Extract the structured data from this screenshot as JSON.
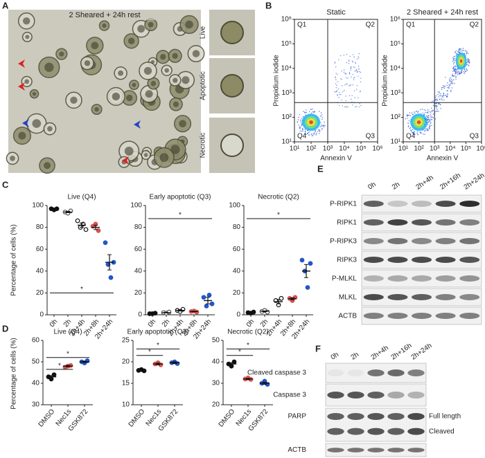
{
  "panels": {
    "A": {
      "letter": "A",
      "title": "2 Sheared + 24h rest",
      "insets": [
        "Live",
        "Apoptotic",
        "Necrotic"
      ]
    },
    "B": {
      "letter": "B",
      "xlabel": "Annexin V",
      "ylabel": "Propidium iodide",
      "log": true,
      "lim": [
        10,
        1000000
      ],
      "ticks": [
        {
          "value": 10,
          "label": "10¹"
        },
        {
          "value": 100,
          "label": "10²"
        },
        {
          "value": 1000,
          "label": "10³"
        },
        {
          "value": 10000,
          "label": "10⁴"
        },
        {
          "value": 100000,
          "label": "10⁵"
        },
        {
          "value": 1000000,
          "label": "10⁶"
        }
      ],
      "gate": [
        1000,
        400
      ],
      "quadrants": [
        "Q1",
        "Q2",
        "Q3",
        "Q4"
      ],
      "plots": [
        {
          "title": "Static"
        },
        {
          "title": "2 Sheared + 24h rest"
        }
      ]
    },
    "C": {
      "letter": "C",
      "ylabel": "Percentage of cells (%)",
      "categories": [
        "0h",
        "2h",
        "2h+4h",
        "2h+8h",
        "2h+24h"
      ],
      "colors": [
        "#111111",
        "#555555",
        "#111111",
        "#d9534f",
        "#2356c7"
      ],
      "filled": [
        true,
        false,
        false,
        true,
        true
      ],
      "ylim": [
        0,
        100
      ],
      "yticks": [
        0,
        20,
        40,
        60,
        80,
        100
      ],
      "plots": [
        {
          "title": "Live (Q4)",
          "groups": [
            {
              "values": [
                97,
                96,
                97
              ],
              "mean": 96.7,
              "sem": 0.5
            },
            {
              "values": [
                94,
                93,
                95
              ],
              "mean": 94,
              "sem": 0.6
            },
            {
              "values": [
                86,
                80,
                83,
                78
              ],
              "mean": 82,
              "sem": 2
            },
            {
              "values": [
                81,
                83,
                77
              ],
              "mean": 80,
              "sem": 2
            },
            {
              "values": [
                66,
                46,
                34,
                48
              ],
              "mean": 48,
              "sem": 7
            }
          ],
          "significance": [
            {
              "from": 0,
              "to": 4,
              "y": 20,
              "label": "*"
            }
          ]
        },
        {
          "title": "Early apoptotic (Q3)",
          "groups": [
            {
              "values": [
                1,
                1,
                1.5
              ],
              "mean": 1.2,
              "sem": 0.2
            },
            {
              "values": [
                2,
                1.5,
                2.5
              ],
              "mean": 2,
              "sem": 0.3
            },
            {
              "values": [
                4,
                3,
                5
              ],
              "mean": 4,
              "sem": 0.6
            },
            {
              "values": [
                3,
                3.5,
                2.5
              ],
              "mean": 3,
              "sem": 0.3
            },
            {
              "values": [
                16,
                8,
                18,
                10
              ],
              "mean": 13,
              "sem": 3
            }
          ],
          "significance": [
            {
              "from": 0,
              "to": 4,
              "y": 88,
              "label": "*"
            }
          ]
        },
        {
          "title": "Necrotic (Q2)",
          "groups": [
            {
              "values": [
                2,
                1.5,
                2.5
              ],
              "mean": 2,
              "sem": 0.3
            },
            {
              "values": [
                3,
                4,
                2.5
              ],
              "mean": 3.2,
              "sem": 0.4
            },
            {
              "values": [
                13,
                9,
                15
              ],
              "mean": 12,
              "sem": 2
            },
            {
              "values": [
                15,
                13,
                16
              ],
              "mean": 14.7,
              "sem": 1
            },
            {
              "values": [
                50,
                40,
                25,
                47
              ],
              "mean": 40,
              "sem": 6
            }
          ],
          "significance": [
            {
              "from": 0,
              "to": 4,
              "y": 88,
              "label": "*"
            }
          ]
        }
      ]
    },
    "D": {
      "letter": "D",
      "ylabel": "Percentage of cells (%)",
      "categories": [
        "DMSO",
        "Nec1s",
        "GSK872"
      ],
      "colors": [
        "#111111",
        "#d9534f",
        "#2356c7"
      ],
      "plots": [
        {
          "title": "Live (Q4)",
          "ylim": [
            30,
            60
          ],
          "yticks": [
            30,
            40,
            50,
            60
          ],
          "groups": [
            {
              "values": [
                43,
                42,
                44
              ],
              "mean": 43,
              "sem": 0.6
            },
            {
              "values": [
                47.5,
                48,
                48.3
              ],
              "mean": 48,
              "sem": 0.3
            },
            {
              "values": [
                50,
                49.5,
                50.5
              ],
              "mean": 50,
              "sem": 0.3
            }
          ],
          "significance": [
            {
              "from": 0,
              "to": 1,
              "y": 46.5,
              "label": "*"
            },
            {
              "from": 0,
              "to": 2,
              "y": 52,
              "label": "*"
            }
          ]
        },
        {
          "title": "Early apoptotic (Q3)",
          "ylim": [
            10,
            25
          ],
          "yticks": [
            10,
            15,
            20,
            25
          ],
          "groups": [
            {
              "values": [
                18,
                18.2,
                17.9
              ],
              "mean": 18,
              "sem": 0.1
            },
            {
              "values": [
                19.5,
                19.8,
                19.3
              ],
              "mean": 19.5,
              "sem": 0.2
            },
            {
              "values": [
                19.8,
                20,
                19.6
              ],
              "mean": 19.8,
              "sem": 0.2
            }
          ],
          "significance": [
            {
              "from": 0,
              "to": 1,
              "y": 21.5,
              "label": "*"
            },
            {
              "from": 0,
              "to": 2,
              "y": 23,
              "label": "*"
            }
          ]
        },
        {
          "title": "Necrotic (Q2)",
          "ylim": [
            20,
            50
          ],
          "yticks": [
            20,
            30,
            40,
            50
          ],
          "groups": [
            {
              "values": [
                39,
                38,
                40
              ],
              "mean": 39,
              "sem": 0.6
            },
            {
              "values": [
                32,
                32.5,
                31.8
              ],
              "mean": 32,
              "sem": 0.3
            },
            {
              "values": [
                30,
                31,
                29.5
              ],
              "mean": 30,
              "sem": 0.5
            }
          ],
          "significance": [
            {
              "from": 0,
              "to": 1,
              "y": 43,
              "label": "*"
            },
            {
              "from": 0,
              "to": 2,
              "y": 46,
              "label": "*"
            }
          ]
        }
      ]
    },
    "E": {
      "letter": "E",
      "lanes": [
        "0h",
        "2h",
        "2h+4h",
        "2h+16h",
        "2h+24h"
      ],
      "rows": [
        "P-RIPK1",
        "RIPK1",
        "P-RIPK3",
        "RIPK3",
        "P-MLKL",
        "MLKL",
        "ACTB"
      ]
    },
    "F": {
      "letter": "F",
      "lanes": [
        "0h",
        "2h",
        "2h+4h",
        "2h+16h",
        "2h+24h"
      ],
      "rows": [
        "Cleaved caspase 3",
        "Caspase 3",
        "PARP",
        "ACTB"
      ],
      "side_labels": [
        "Full length",
        "Cleaved"
      ]
    }
  }
}
